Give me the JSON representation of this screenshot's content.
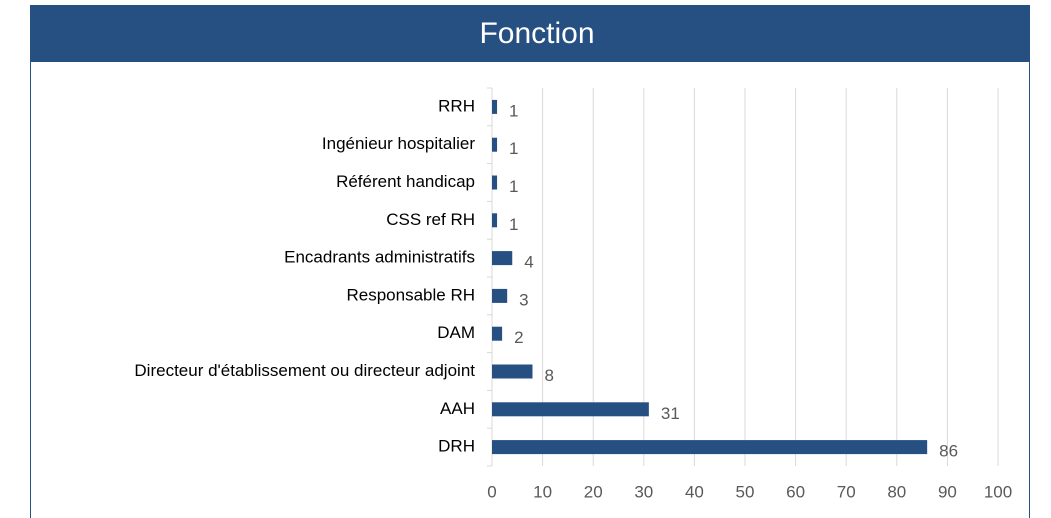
{
  "chart_data": {
    "type": "bar",
    "orientation": "horizontal",
    "title": "Fonction",
    "categories": [
      "RRH",
      "Ingénieur hospitalier",
      "Référent handicap",
      "CSS ref RH",
      "Encadrants administratifs",
      "Responsable RH",
      "DAM",
      "Directeur d'établissement ou directeur adjoint",
      "AAH",
      "DRH"
    ],
    "values": [
      1,
      1,
      1,
      1,
      4,
      3,
      2,
      8,
      31,
      86
    ],
    "color": "#264f82",
    "xlim": [
      0,
      100
    ],
    "xticks": [
      0,
      10,
      20,
      30,
      40,
      50,
      60,
      70,
      80,
      90,
      100
    ],
    "grid": true
  }
}
